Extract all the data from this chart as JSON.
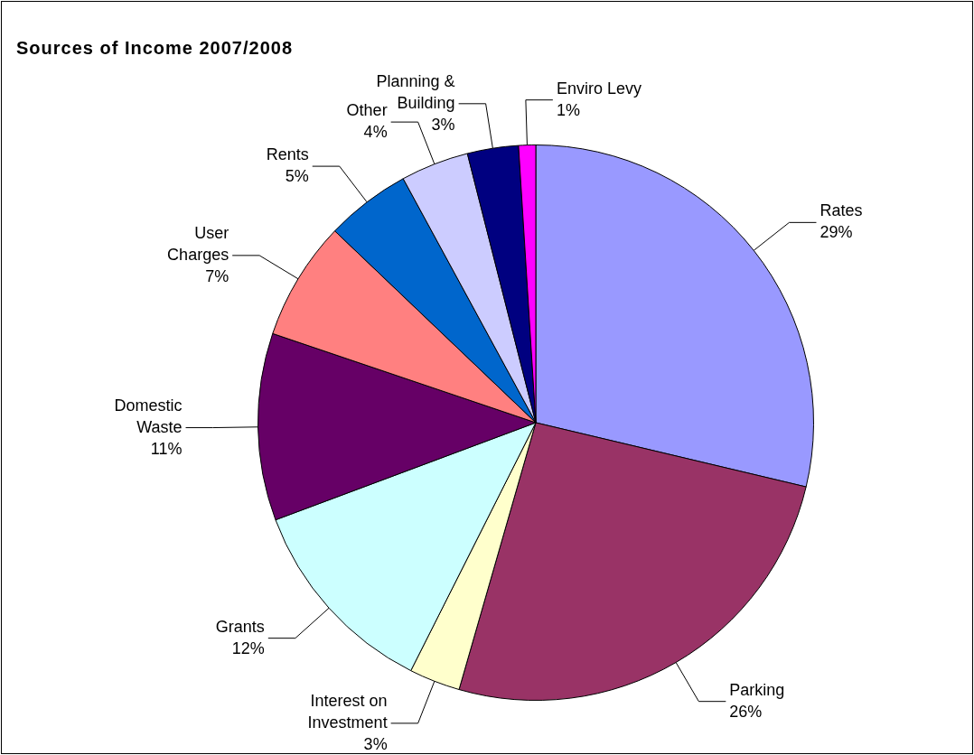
{
  "chart_data": {
    "type": "pie",
    "title": "Sources of Income 2007/2008",
    "categories": [
      "Rates",
      "Parking",
      "Interest on Investment",
      "Grants",
      "Domestic Waste",
      "User Charges",
      "Rents",
      "Other",
      "Planning & Building",
      "Enviro Levy"
    ],
    "values": [
      29,
      26,
      3,
      12,
      11,
      7,
      5,
      4,
      3,
      1
    ],
    "value_labels": [
      "29%",
      "26%",
      "3%",
      "12%",
      "11%",
      "7%",
      "5%",
      "4%",
      "3%",
      "1%"
    ],
    "colors": [
      "#9999ff",
      "#993366",
      "#ffffcc",
      "#ccffff",
      "#660066",
      "#ff8080",
      "#0066cc",
      "#ccccff",
      "#000080",
      "#ff00ff"
    ],
    "legend": false
  }
}
